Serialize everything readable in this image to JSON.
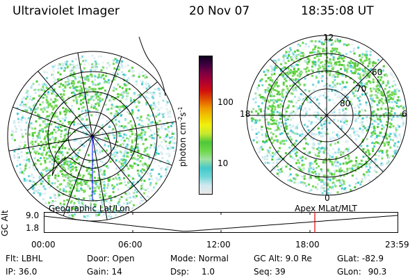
{
  "header": {
    "instrument": "Ultraviolet Imager",
    "date": "20 Nov 07",
    "time": "18:35:08 UT"
  },
  "colorbar": {
    "unit_label": "photon cm",
    "unit_exp1": "-2",
    "unit_mid": "s",
    "unit_exp2": "-1",
    "ticks": [
      "100",
      "10"
    ],
    "colors": [
      "#e8e8e8",
      "#cfe8f0",
      "#6fd6d8",
      "#44c8c8",
      "#9fe0a0",
      "#6ed84a",
      "#4ec83a",
      "#c8e830",
      "#f0f010",
      "#f0c800",
      "#f09800",
      "#e05000",
      "#d01010",
      "#b00030",
      "#800040",
      "#400040",
      "#100020"
    ]
  },
  "left_map": {
    "caption": "Geographic Lat/Lon"
  },
  "right_map": {
    "caption": "Apex MLat/MLT",
    "mlt_labels": [
      "12",
      "18",
      "6",
      "0"
    ],
    "lat_labels": [
      "60",
      "70",
      "80"
    ]
  },
  "timeline": {
    "axis_label": "GC Alt",
    "y_ticks": [
      "9.0",
      "1.8"
    ],
    "x_ticks": [
      "00:00",
      "06:00",
      "12:00",
      "18:00",
      "23:59"
    ],
    "marker_color": "#e00000"
  },
  "info": {
    "filter_label": "Flt:",
    "filter_value": "LBHL",
    "ip_label": "IP:",
    "ip_value": "36.0",
    "door_label": "Door:",
    "door_value": "Open",
    "gain_label": "Gain:",
    "gain_value": "14",
    "mode_label": "Mode:",
    "mode_value": "Normal",
    "dsp_label": "Dsp:",
    "dsp_value": "1.0",
    "gcalt_label": "GC Alt:",
    "gcalt_value": "9.0 Re",
    "seq_label": "Seq:",
    "seq_value": "39",
    "glat_label": "GLat:",
    "glat_value": "-82.9",
    "glon_label": "GLon:",
    "glon_value": "90.3"
  }
}
